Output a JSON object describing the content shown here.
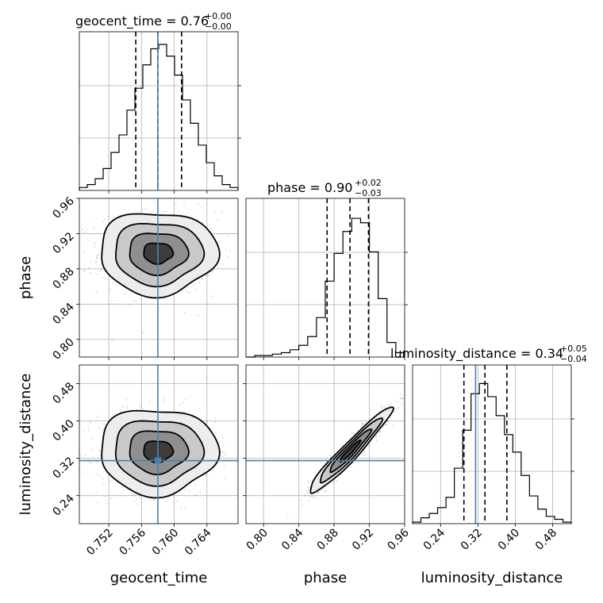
{
  "chart_data": {
    "type": "corner",
    "parameters": [
      {
        "name": "geocent_time",
        "xlabel": "geocent_time",
        "title_main": "geocent_time = 0.76",
        "title_plus": "+0.00",
        "title_minus": "−0.00",
        "range": [
          0.7484,
          0.7678
        ],
        "ticks": [
          0.752,
          0.756,
          0.76,
          0.764
        ],
        "tick_labels": [
          "0.752",
          "0.756",
          "0.760",
          "0.764"
        ],
        "truth": 0.758,
        "quantiles": [
          0.7553,
          0.758,
          0.7609
        ],
        "hist_density": [
          0.02,
          0.04,
          0.08,
          0.15,
          0.26,
          0.38,
          0.55,
          0.7,
          0.86,
          0.97,
          1.0,
          0.92,
          0.79,
          0.62,
          0.46,
          0.31,
          0.19,
          0.1,
          0.04,
          0.02
        ]
      },
      {
        "name": "phase",
        "xlabel": "phase",
        "ylabel": "phase",
        "title_main": "phase = 0.90",
        "title_plus": "+0.02",
        "title_minus": "−0.03",
        "range": [
          0.78,
          0.96
        ],
        "ticks": [
          0.8,
          0.84,
          0.88,
          0.92,
          0.96
        ],
        "tick_labels": [
          "0.80",
          "0.84",
          "0.88",
          "0.92",
          "0.96"
        ],
        "quantiles": [
          0.872,
          0.898,
          0.919
        ],
        "hist_density": [
          0.0,
          0.01,
          0.01,
          0.02,
          0.03,
          0.05,
          0.08,
          0.14,
          0.27,
          0.52,
          0.71,
          0.86,
          0.95,
          0.92,
          0.72,
          0.4,
          0.1,
          0.03
        ]
      },
      {
        "name": "luminosity_distance",
        "xlabel": "luminosity_distance",
        "ylabel": "luminosity_distance",
        "title_main": "luminosity_distance = 0.34",
        "title_plus": "+0.05",
        "title_minus": "−0.04",
        "range": [
          0.18,
          0.52
        ],
        "ticks": [
          0.24,
          0.32,
          0.4,
          0.48
        ],
        "tick_labels": [
          "0.24",
          "0.32",
          "0.40",
          "0.48"
        ],
        "truth": 0.315,
        "quantiles": [
          0.29,
          0.335,
          0.382
        ],
        "hist_density": [
          0.01,
          0.04,
          0.07,
          0.11,
          0.18,
          0.38,
          0.64,
          0.89,
          0.96,
          0.87,
          0.74,
          0.61,
          0.49,
          0.33,
          0.19,
          0.1,
          0.05,
          0.03,
          0.01
        ]
      }
    ],
    "pairs": [
      {
        "x": "geocent_time",
        "y": "phase",
        "center": [
          0.758,
          0.898
        ],
        "sigma": [
          0.0036,
          0.0235
        ],
        "rho": 0.0
      },
      {
        "x": "geocent_time",
        "y": "luminosity_distance",
        "center": [
          0.758,
          0.335
        ],
        "sigma": [
          0.0036,
          0.046
        ],
        "rho": 0.0
      },
      {
        "x": "phase",
        "y": "luminosity_distance",
        "center": [
          0.898,
          0.335
        ],
        "sigma": [
          0.0235,
          0.046
        ],
        "rho": 0.96
      }
    ],
    "grid": true,
    "colors": {
      "truth": "#4682b4",
      "hist": "#000000",
      "quantile": "#000000"
    }
  }
}
